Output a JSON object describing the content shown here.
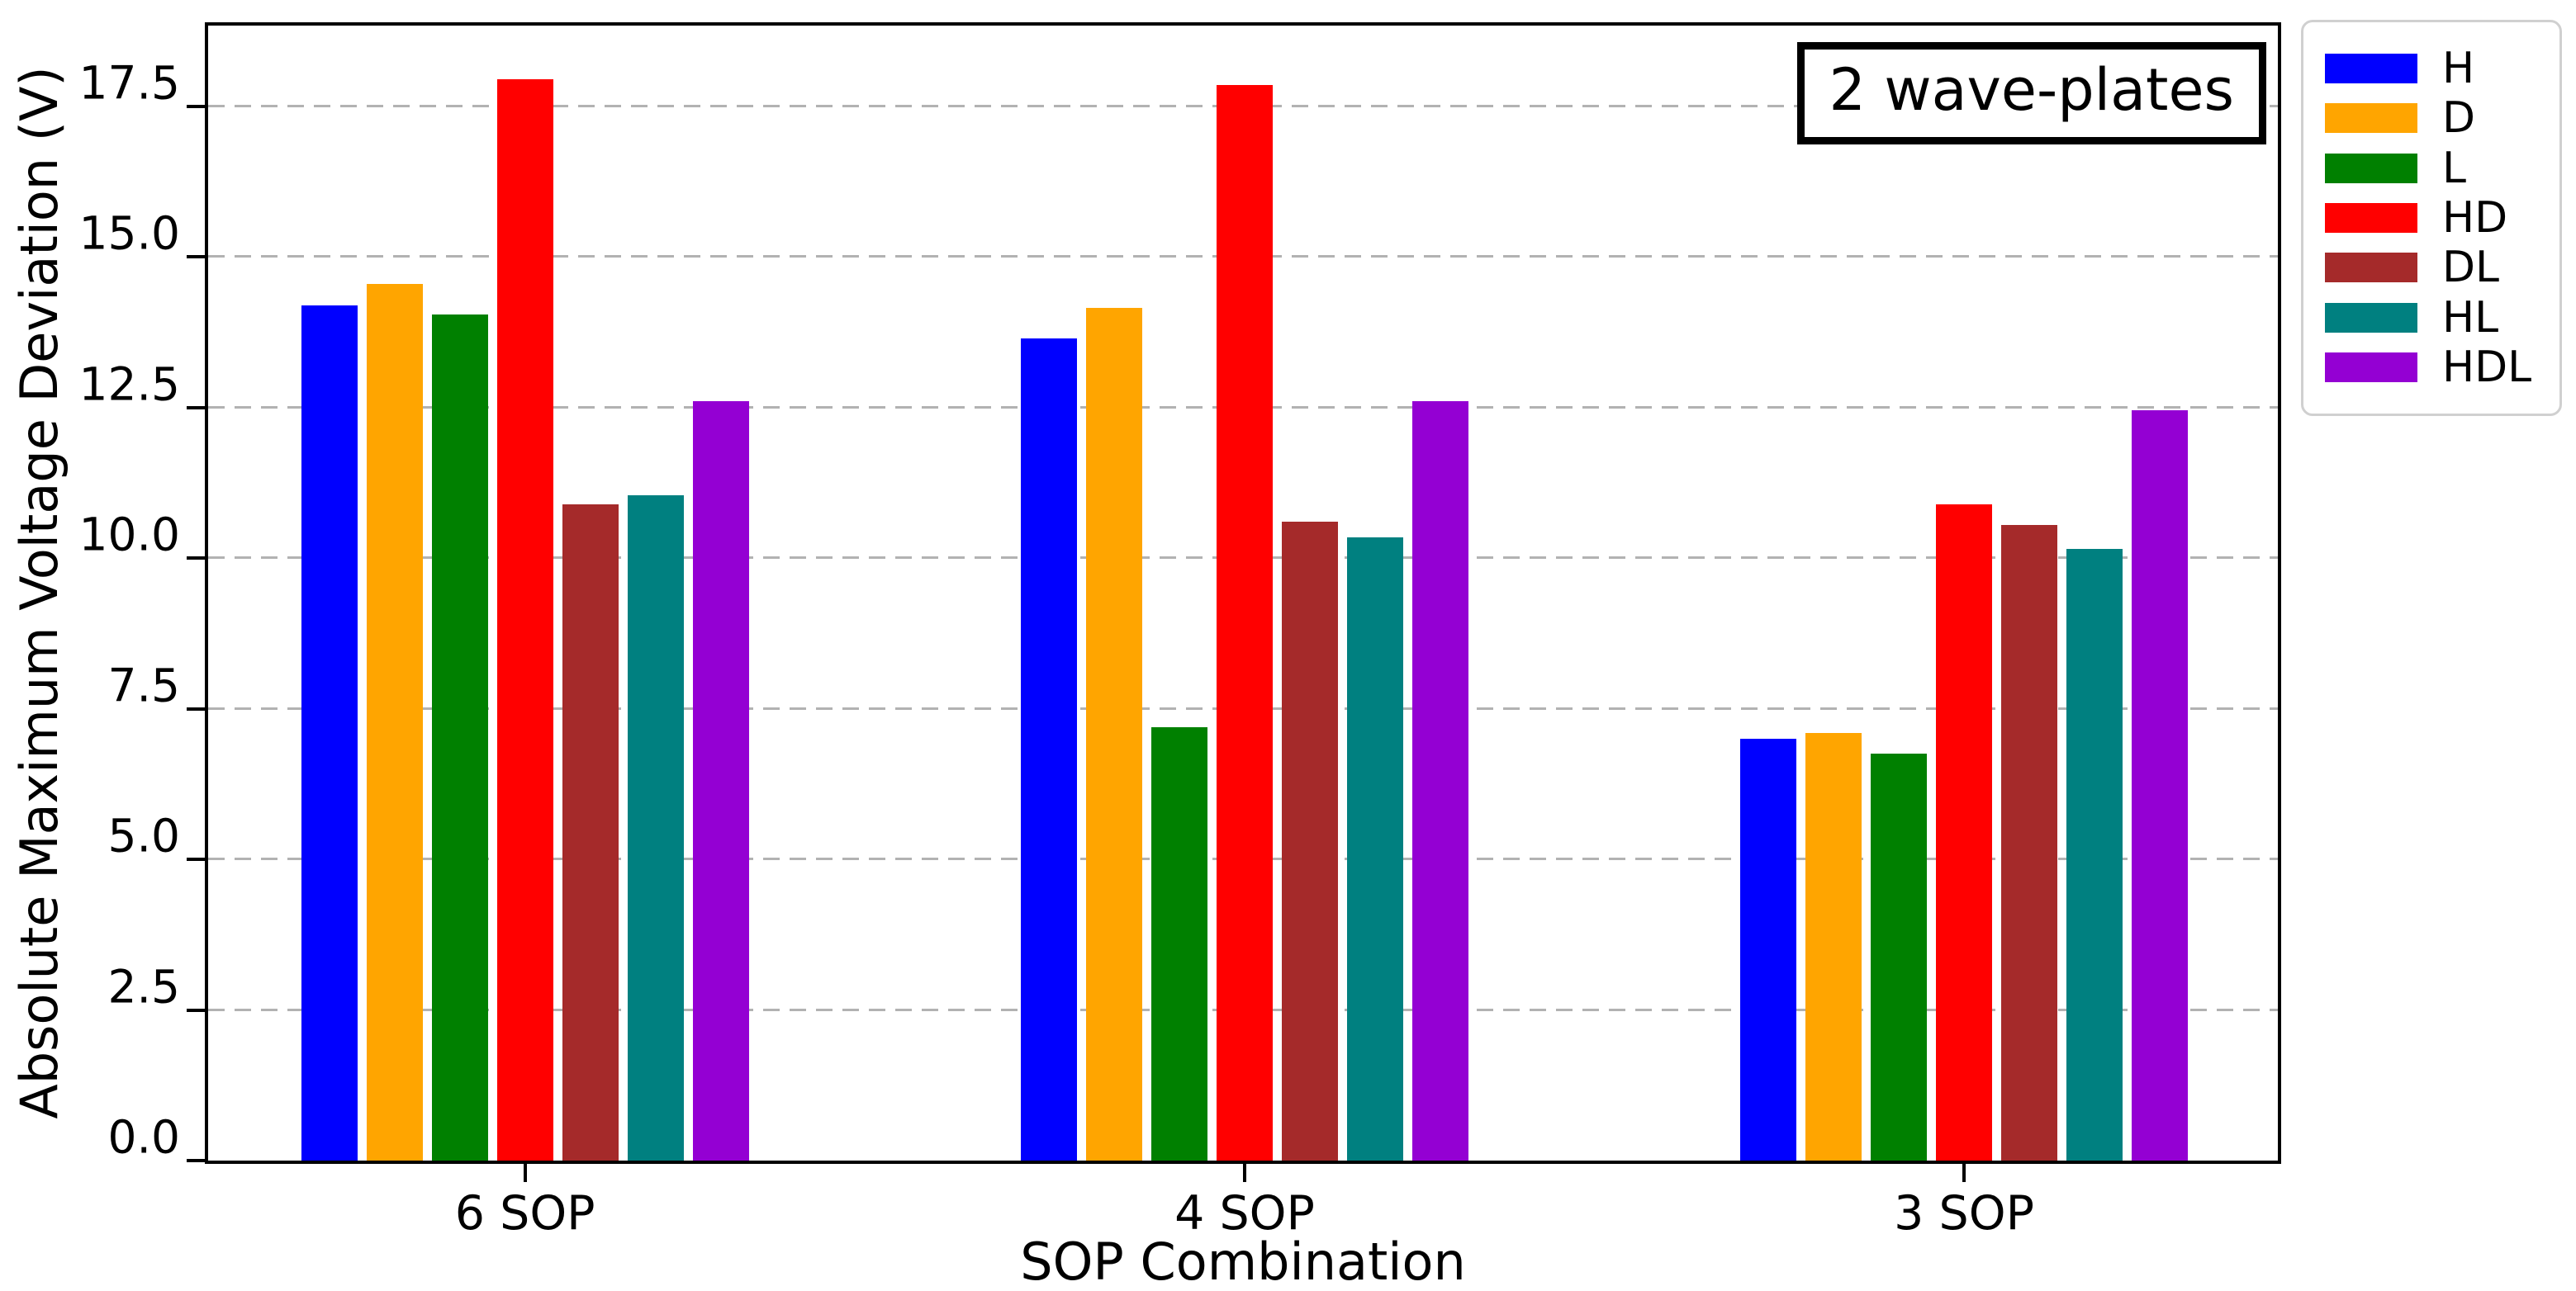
{
  "chart_data": {
    "type": "bar",
    "annotation": "2 wave-plates",
    "xlabel": "SOP Combination",
    "ylabel": "Absolute Maximum Voltage Deviation (V)",
    "categories": [
      "6 SOP",
      "4 SOP",
      "3 SOP"
    ],
    "series": [
      {
        "name": "H",
        "color": "#0000ff",
        "values": [
          14.2,
          13.65,
          7.0
        ]
      },
      {
        "name": "D",
        "color": "#ffa500",
        "values": [
          14.55,
          14.15,
          7.1
        ]
      },
      {
        "name": "L",
        "color": "#008000",
        "values": [
          14.05,
          7.2,
          6.75
        ]
      },
      {
        "name": "HD",
        "color": "#ff0000",
        "values": [
          17.95,
          17.85,
          10.9
        ]
      },
      {
        "name": "DL",
        "color": "#a52a2a",
        "values": [
          10.9,
          10.6,
          10.55
        ]
      },
      {
        "name": "HL",
        "color": "#008080",
        "values": [
          11.05,
          10.35,
          10.15
        ]
      },
      {
        "name": "HDL",
        "color": "#9400d3",
        "values": [
          12.6,
          12.6,
          12.45
        ]
      }
    ],
    "yticks": [
      "0.0",
      "2.5",
      "5.0",
      "7.5",
      "10.0",
      "12.5",
      "15.0",
      "17.5"
    ],
    "ylim": [
      0,
      18.84
    ],
    "grid": "horizontal dashed",
    "grid_color": "#b2b2b2",
    "legend_position": "outside upper right"
  }
}
